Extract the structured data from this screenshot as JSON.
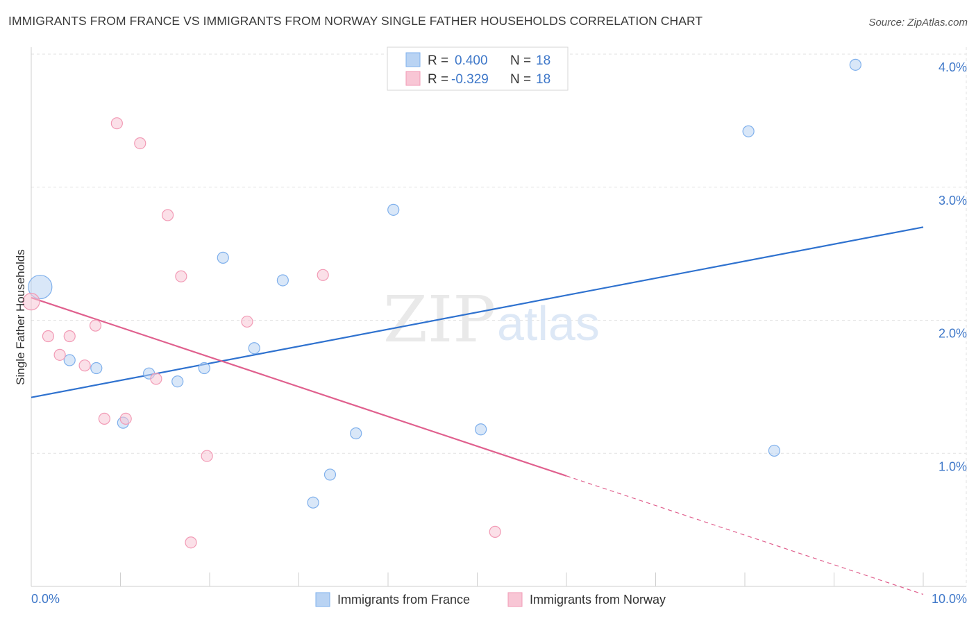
{
  "title": "IMMIGRANTS FROM FRANCE VS IMMIGRANTS FROM NORWAY SINGLE FATHER HOUSEHOLDS CORRELATION CHART",
  "source": "Source: ZipAtlas.com",
  "watermark": {
    "zip": "ZIP",
    "atlas": "atlas"
  },
  "colors": {
    "france": "#7fb0ec",
    "france_fill": "#b9d3f3",
    "france_line": "#2f72cf",
    "norway": "#f29ab5",
    "norway_fill": "#f8c6d5",
    "norway_line": "#e0608e",
    "grid": "#e2e2e2",
    "axis_text": "#3f78c9"
  },
  "legend": {
    "rows": [
      {
        "r_label": "R =",
        "r_value": "0.400",
        "n_label": "N =",
        "n_value": "18"
      },
      {
        "r_label": "R =",
        "r_value": "-0.329",
        "n_label": "N =",
        "n_value": "18"
      }
    ]
  },
  "chart_data": {
    "type": "scatter",
    "title": "IMMIGRANTS FROM FRANCE VS IMMIGRANTS FROM NORWAY SINGLE FATHER HOUSEHOLDS CORRELATION CHART",
    "xlabel": "",
    "ylabel": "Single Father Households",
    "xlim": [
      0.0,
      10.0
    ],
    "ylim": [
      0.0,
      4.0
    ],
    "x_tick_labels": [
      "0.0%",
      "10.0%"
    ],
    "y_tick_values": [
      1.0,
      2.0,
      3.0,
      4.0
    ],
    "y_tick_labels": [
      "1.0%",
      "2.0%",
      "3.0%",
      "4.0%"
    ],
    "grid": true,
    "legend_placement": "top-center",
    "series": [
      {
        "name": "Immigrants from France",
        "color": "#7fb0ec",
        "points": [
          [
            0.1,
            2.25
          ],
          [
            0.43,
            1.7
          ],
          [
            0.73,
            1.64
          ],
          [
            1.03,
            1.23
          ],
          [
            1.32,
            1.6
          ],
          [
            1.64,
            1.54
          ],
          [
            1.94,
            1.64
          ],
          [
            2.15,
            2.47
          ],
          [
            2.5,
            1.79
          ],
          [
            2.82,
            2.3
          ],
          [
            3.16,
            0.63
          ],
          [
            3.35,
            0.84
          ],
          [
            3.64,
            1.15
          ],
          [
            4.06,
            2.83
          ],
          [
            5.04,
            1.18
          ],
          [
            8.04,
            3.42
          ],
          [
            8.33,
            1.02
          ],
          [
            9.24,
            3.92
          ]
        ],
        "point_sizes": [
          3,
          1,
          1,
          1,
          1,
          1,
          1,
          1,
          1,
          1,
          1,
          1,
          1,
          1,
          1,
          1,
          1,
          1
        ],
        "trend": {
          "x": [
            0.0,
            10.0
          ],
          "y": [
            1.42,
            2.7
          ]
        }
      },
      {
        "name": "Immigrants from Norway",
        "color": "#f29ab5",
        "points": [
          [
            0.0,
            2.14
          ],
          [
            0.19,
            1.88
          ],
          [
            0.32,
            1.74
          ],
          [
            0.43,
            1.88
          ],
          [
            0.6,
            1.66
          ],
          [
            0.72,
            1.96
          ],
          [
            0.82,
            1.26
          ],
          [
            0.96,
            3.48
          ],
          [
            1.06,
            1.26
          ],
          [
            1.22,
            3.33
          ],
          [
            1.4,
            1.56
          ],
          [
            1.53,
            2.79
          ],
          [
            1.68,
            2.33
          ],
          [
            1.79,
            0.33
          ],
          [
            1.97,
            0.98
          ],
          [
            2.42,
            1.99
          ],
          [
            3.27,
            2.34
          ],
          [
            5.2,
            0.41
          ]
        ],
        "point_sizes": [
          2,
          1,
          1,
          1,
          1,
          1,
          1,
          1,
          1,
          1,
          1,
          1,
          1,
          1,
          1,
          1,
          1,
          1
        ],
        "trend": {
          "x": [
            0.0,
            6.0
          ],
          "y": [
            2.17,
            0.83
          ],
          "dashed_extension": {
            "x": [
              6.0,
              10.0
            ],
            "y": [
              0.83,
              -0.06
            ]
          }
        }
      }
    ]
  }
}
